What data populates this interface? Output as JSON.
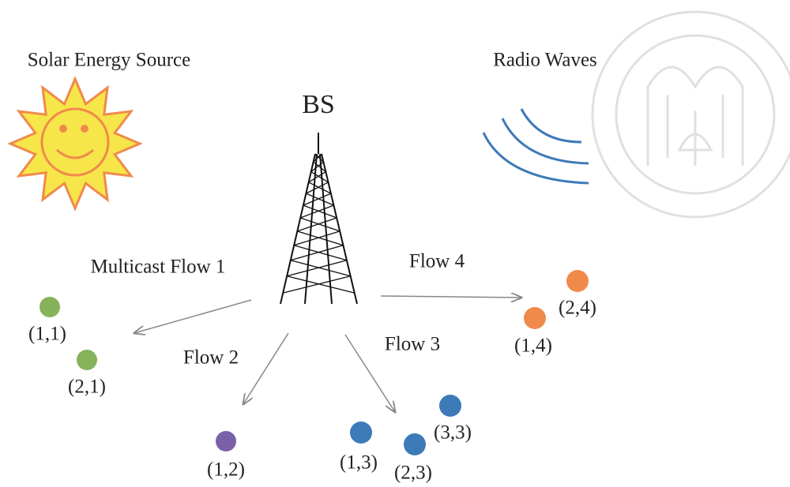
{
  "labels": {
    "solar_source": "Solar Energy Source",
    "radio_waves": "Radio Waves",
    "base_station": "BS"
  },
  "flows": [
    "Multicast Flow 1",
    "Flow 2",
    "Flow 3",
    "Flow 4"
  ],
  "nodes": [
    "(1,1)",
    "(2,1)",
    "(1,2)",
    "(1,3)",
    "(2,3)",
    "(3,3)",
    "(1,4)",
    "(2,4)"
  ]
}
